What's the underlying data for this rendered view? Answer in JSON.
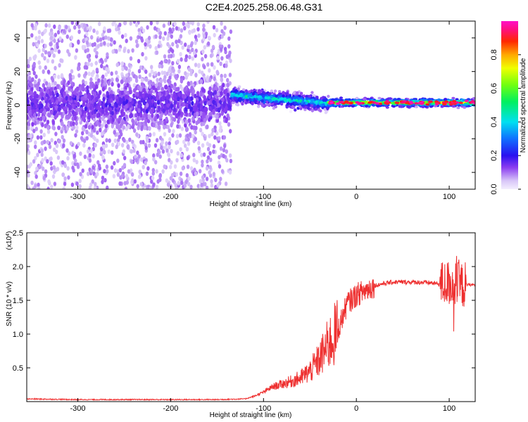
{
  "title": "C2E4.2025.258.06.48.G31",
  "colors": {
    "snr_line": "#ee3030",
    "spectrum_main": "#5a10e8",
    "spectrum_faint": "#c8b4f8",
    "frame": "#000000"
  },
  "chart_data": [
    {
      "type": "heatmap",
      "title": "C2E4.2025.258.06.48.G31",
      "xlabel": "Height of straight line (km)",
      "ylabel": "Frequency (Hz)",
      "xlim": [
        -355,
        128
      ],
      "ylim": [
        -50,
        50
      ],
      "x_ticks": [
        -300,
        -200,
        -100,
        0,
        100
      ],
      "x_tick_labels": [
        "-300",
        "-200",
        "-100",
        "0",
        "100"
      ],
      "y_ticks": [
        -40,
        -20,
        0,
        20,
        40
      ],
      "y_tick_labels": [
        "-40",
        "-20",
        "0",
        "20",
        "40"
      ],
      "colorbar": {
        "label": "Normalized spectral amplitude",
        "range": [
          0,
          1
        ],
        "ticks": [
          0.0,
          0.2,
          0.4,
          0.6,
          0.8
        ],
        "tick_labels": [
          "0.0",
          "0.2",
          "0.4",
          "0.6",
          "0.8"
        ],
        "colormap": "rainbow (white-violet to magenta)"
      },
      "regions": [
        {
          "x_range": [
            -355,
            -135
          ],
          "center_freq_hz": 1,
          "spread_hz": 10,
          "typical_amplitude": 0.15,
          "note": "broad scattered noise across full band"
        },
        {
          "x_range": [
            -135,
            -30
          ],
          "center_freq_hz_start": 6,
          "center_freq_hz_end": 1,
          "spread_hz": 3,
          "typical_amplitude": 0.45
        },
        {
          "x_range": [
            -30,
            128
          ],
          "center_freq_hz": 1.5,
          "spread_hz": 1.5,
          "typical_amplitude": 0.75,
          "peak_amplitude": 1.0
        }
      ]
    },
    {
      "type": "line",
      "xlabel": "Height of straight line (km)",
      "ylabel": "SNR (10 * v/v)",
      "y_scale_label": "(x10",
      "y_scale_exponent": "4",
      "y_scale_suffix": ")",
      "xlim": [
        -355,
        128
      ],
      "ylim": [
        0,
        2.5
      ],
      "x_ticks": [
        -300,
        -200,
        -100,
        0,
        100
      ],
      "x_tick_labels": [
        "-300",
        "-200",
        "-100",
        "0",
        "100"
      ],
      "y_ticks": [
        0.5,
        1.0,
        1.5,
        2.0,
        2.5
      ],
      "y_tick_labels": [
        "0.5",
        "1.0",
        "1.5",
        "2.0",
        "2.5"
      ],
      "series": [
        {
          "name": "SNR",
          "x": [
            -355,
            -300,
            -250,
            -200,
            -150,
            -120,
            -110,
            -100,
            -90,
            -80,
            -70,
            -60,
            -50,
            -40,
            -30,
            -20,
            -15,
            -10,
            0,
            10,
            20,
            30,
            40,
            60,
            80,
            90,
            100,
            110,
            120,
            128
          ],
          "y": [
            0.04,
            0.03,
            0.03,
            0.03,
            0.03,
            0.04,
            0.08,
            0.14,
            0.22,
            0.26,
            0.3,
            0.35,
            0.45,
            0.62,
            0.85,
            1.05,
            1.25,
            1.45,
            1.58,
            1.65,
            1.72,
            1.75,
            1.77,
            1.77,
            1.76,
            1.74,
            1.75,
            1.72,
            1.73,
            1.73
          ]
        }
      ]
    }
  ]
}
